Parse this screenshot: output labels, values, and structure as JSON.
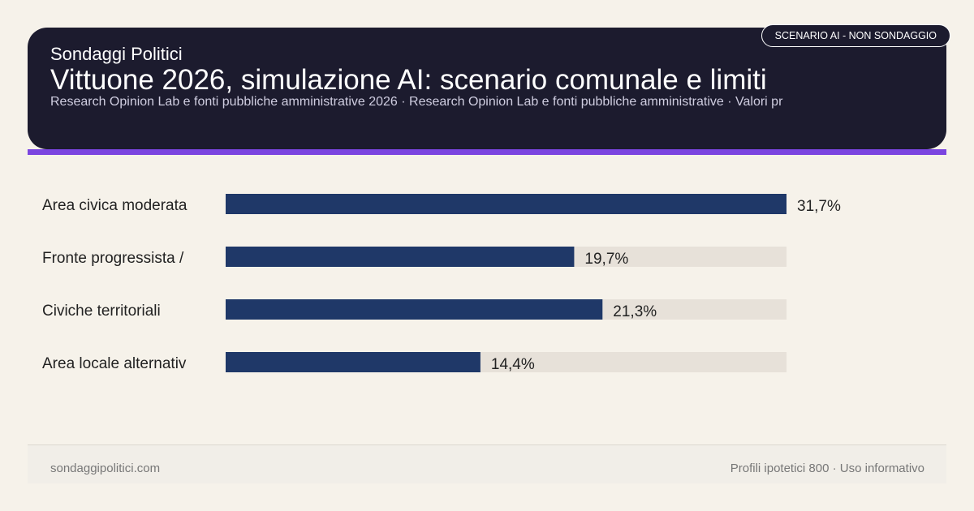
{
  "header": {
    "kicker": "Sondaggi Politici",
    "title": "Vittuone 2026, simulazione AI: scenario comunale e limiti",
    "source": "Research Opinion Lab e fonti pubbliche amministrative 2026 · Research Opinion Lab e fonti pubbliche amministrative · Valori pr",
    "badge": "SCENARIO AI - NON SONDAGGIO"
  },
  "colors": {
    "header_bg": "#1c1b2e",
    "accent": "#7b45e0",
    "bar": "#1f3868",
    "track": "#e7e1d9",
    "background": "#f6f2ea"
  },
  "chart_data": {
    "type": "bar",
    "orientation": "horizontal",
    "categories": [
      "Area civica moderata",
      "Fronte progressista /",
      "Civiche territoriali",
      "Area locale alternativ"
    ],
    "values": [
      31.7,
      19.7,
      21.3,
      14.4
    ],
    "value_labels": [
      "31,7%",
      "19,7%",
      "21,3%",
      "14,4%"
    ],
    "unit": "%",
    "xlim": [
      0,
      31.7
    ]
  },
  "footer": {
    "site": "sondaggipolitici.com",
    "note": "Profili ipotetici 800 · Uso informativo"
  }
}
